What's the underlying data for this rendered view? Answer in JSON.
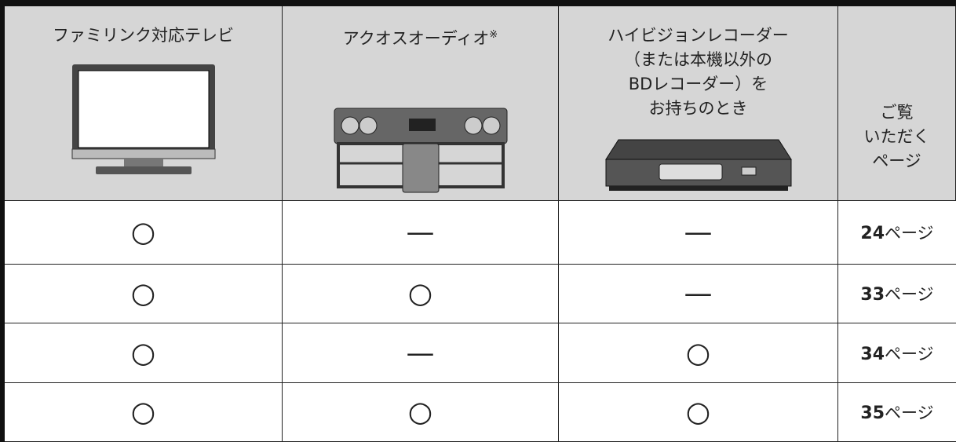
{
  "table": {
    "header": [
      {
        "lines": [
          "ファミリンク対応テレビ"
        ]
      },
      {
        "lines": [
          "アクオスオーディオ"
        ],
        "note": "※"
      },
      {
        "lines": [
          "ハイビジョンレコーダー",
          "（または本機以外の",
          "BDレコーダー）を",
          "お持ちのとき"
        ]
      },
      {
        "lines": [
          "ご覧",
          "いただく",
          "ページ"
        ]
      }
    ],
    "rows": [
      {
        "cells": [
          "○",
          "—",
          "—"
        ],
        "page": {
          "number": "24",
          "suffix": "ページ"
        }
      },
      {
        "cells": [
          "○",
          "○",
          "—"
        ],
        "page": {
          "number": "33",
          "suffix": "ページ"
        }
      },
      {
        "cells": [
          "○",
          "—",
          "○"
        ],
        "page": {
          "number": "34",
          "suffix": "ページ"
        }
      },
      {
        "cells": [
          "○",
          "○",
          "○"
        ],
        "page": {
          "number": "35",
          "suffix": "ページ"
        }
      }
    ]
  }
}
